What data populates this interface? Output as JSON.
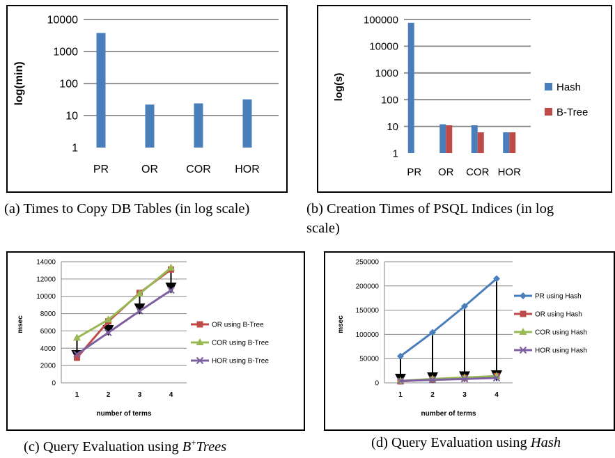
{
  "colors": {
    "blue": "#4A7EBB",
    "red": "#BE4B48",
    "green": "#98B954",
    "purple": "#7D60A0",
    "grid": "#868686",
    "frame": "#000000"
  },
  "captions": {
    "a": "(a)  Times to Copy DB Tables (in log scale)",
    "b": "(b)  Creation Times of PSQL Indices (in log",
    "b_tail": "scale)",
    "c_prefix": "(c)  Query Evaluation using ",
    "c_math": "B",
    "c_sup": "+",
    "c_math2": "Trees",
    "d_prefix": "(d)  Query Evaluation using ",
    "d_math": "Hash"
  },
  "chart_data": [
    {
      "id": "a",
      "type": "bar",
      "ylabel": "log(min)",
      "yscale": "log",
      "ylim": [
        1,
        10000
      ],
      "yticks": [
        "1",
        "10",
        "100",
        "1000",
        "10000"
      ],
      "categories": [
        "PR",
        "OR",
        "COR",
        "HOR"
      ],
      "series": [
        {
          "values": [
            3800,
            22,
            24,
            32
          ],
          "color": "blue"
        }
      ],
      "grid": true
    },
    {
      "id": "b",
      "type": "bar",
      "ylabel": "log(s)",
      "yscale": "log",
      "ylim": [
        1,
        100000
      ],
      "yticks": [
        "1",
        "10",
        "100",
        "1000",
        "10000",
        "100000"
      ],
      "categories": [
        "PR",
        "OR",
        "COR",
        "HOR"
      ],
      "series": [
        {
          "name": "Hash",
          "values": [
            75000,
            12,
            11,
            6
          ],
          "color": "blue"
        },
        {
          "name": "B-Tree",
          "values": [
            null,
            11,
            6,
            6
          ],
          "color": "red"
        }
      ],
      "legend": "right",
      "grid": true
    },
    {
      "id": "c",
      "type": "line",
      "xlabel": "number of terms",
      "ylabel": "msec",
      "ylim": [
        0,
        14000
      ],
      "yticks": [
        "0",
        "2000",
        "4000",
        "6000",
        "8000",
        "10000",
        "12000",
        "14000"
      ],
      "x": [
        "1",
        "2",
        "3",
        "4"
      ],
      "series": [
        {
          "name": "OR using B-Tree",
          "values": [
            2900,
            7100,
            10400,
            13100
          ],
          "color": "red",
          "marker": "square"
        },
        {
          "name": "COR using B-Tree",
          "values": [
            5200,
            7300,
            10300,
            13300
          ],
          "color": "green",
          "marker": "triangle"
        },
        {
          "name": "HOR using B-Tree",
          "values": [
            3300,
            5800,
            8300,
            10700
          ],
          "color": "purple",
          "marker": "x"
        }
      ],
      "legend": "right",
      "grid": true
    },
    {
      "id": "d",
      "type": "line",
      "xlabel": "number of terms",
      "ylabel": "msec",
      "ylim": [
        0,
        250000
      ],
      "yticks": [
        "0",
        "50000",
        "100000",
        "150000",
        "200000",
        "250000"
      ],
      "x": [
        "1",
        "2",
        "3",
        "4"
      ],
      "series": [
        {
          "name": "PR using Hash",
          "values": [
            55000,
            104000,
            158000,
            215000
          ],
          "color": "blue",
          "marker": "diamond"
        },
        {
          "name": "OR using Hash",
          "values": [
            3000,
            7000,
            10000,
            14000
          ],
          "color": "red",
          "marker": "square"
        },
        {
          "name": "COR using Hash",
          "values": [
            4000,
            8000,
            11000,
            14000
          ],
          "color": "green",
          "marker": "triangle"
        },
        {
          "name": "HOR using Hash",
          "values": [
            4000,
            6000,
            8000,
            10000
          ],
          "color": "purple",
          "marker": "x"
        }
      ],
      "legend": "right",
      "grid": true
    }
  ]
}
